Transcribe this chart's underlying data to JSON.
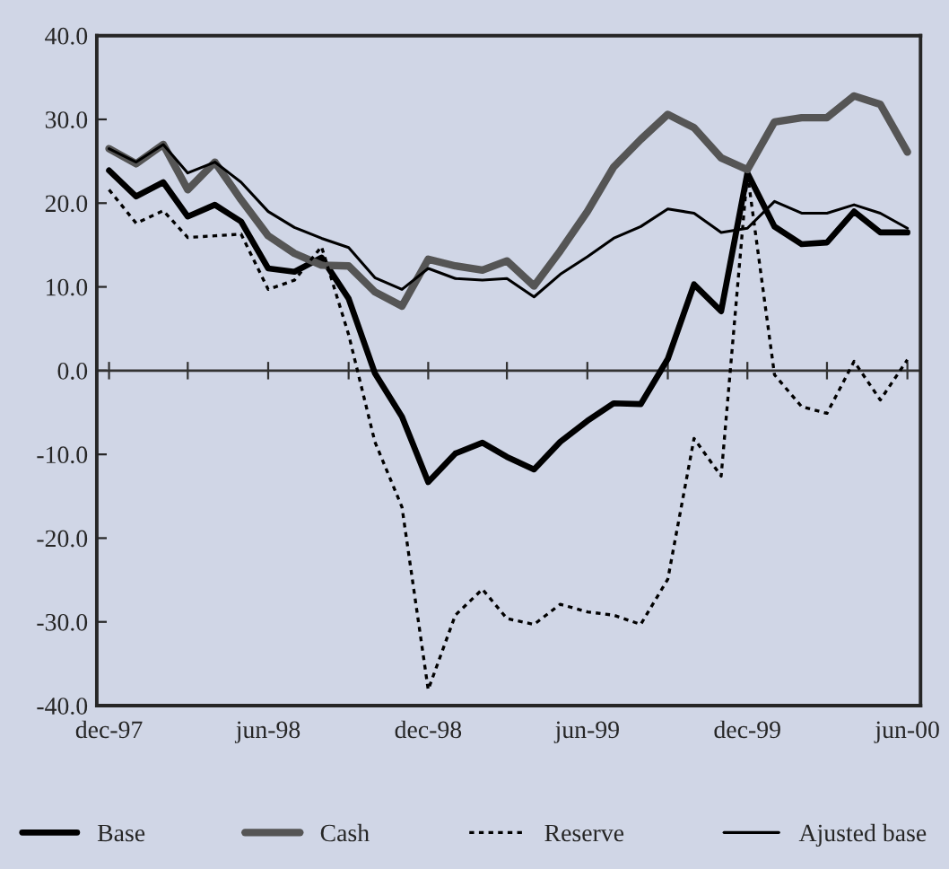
{
  "chart_data": {
    "type": "line",
    "x": [
      "1997-12",
      "1998-01",
      "1998-02",
      "1998-03",
      "1998-04",
      "1998-05",
      "1998-06",
      "1998-07",
      "1998-08",
      "1998-09",
      "1998-10",
      "1998-11",
      "1998-12",
      "1999-01",
      "1999-02",
      "1999-03",
      "1999-04",
      "1999-05",
      "1999-06",
      "1999-07",
      "1999-08",
      "1999-09",
      "1999-10",
      "1999-11",
      "1999-12",
      "2000-01",
      "2000-02",
      "2000-03",
      "2000-04",
      "2000-05",
      "2000-06"
    ],
    "series": [
      {
        "name": "Base",
        "color": "#000000",
        "line_style": "solid",
        "values": [
          23.9,
          20.8,
          22.5,
          18.4,
          19.8,
          17.8,
          12.2,
          11.8,
          13.5,
          8.6,
          -0.3,
          -5.5,
          -13.3,
          -9.9,
          -8.6,
          -10.3,
          -11.8,
          -8.5,
          -6.0,
          -3.9,
          -4.0,
          1.4,
          10.3,
          7.1,
          23.6,
          17.2,
          15.1,
          15.3,
          19.0,
          16.5,
          16.5
        ]
      },
      {
        "name": "Cash",
        "color": "#555555",
        "line_style": "solid",
        "values": [
          26.5,
          24.7,
          27.0,
          21.6,
          24.9,
          20.4,
          16.1,
          14.0,
          12.6,
          12.5,
          9.4,
          7.7,
          13.3,
          12.5,
          12.0,
          13.1,
          10.1,
          14.3,
          19.0,
          24.3,
          27.6,
          30.6,
          29.0,
          25.4,
          24.0,
          29.7,
          30.2,
          30.2,
          32.8,
          31.8,
          26.1
        ]
      },
      {
        "name": "Reserve",
        "color": "#000000",
        "line_style": "dotted",
        "values": [
          21.6,
          17.6,
          19.1,
          15.9,
          16.1,
          16.3,
          9.7,
          10.8,
          14.8,
          4.3,
          -8.5,
          -16.3,
          -38.1,
          -29.2,
          -26.1,
          -29.6,
          -30.3,
          -27.9,
          -28.8,
          -29.2,
          -30.3,
          -24.9,
          -8.1,
          -12.6,
          23.6,
          -0.5,
          -4.3,
          -5.1,
          1.1,
          -3.5,
          1.3
        ]
      },
      {
        "name": "Ajusted base",
        "color": "#000000",
        "line_style": "solid",
        "values": [
          26.5,
          24.9,
          27.0,
          23.6,
          24.9,
          22.5,
          19.0,
          17.1,
          15.8,
          14.7,
          11.1,
          9.7,
          12.2,
          11.0,
          10.8,
          11.0,
          8.8,
          11.5,
          13.6,
          15.8,
          17.2,
          19.3,
          18.8,
          16.5,
          17.0,
          20.2,
          18.8,
          18.8,
          19.8,
          18.8,
          17.0
        ]
      }
    ],
    "xlim": [
      "1997-11-17",
      "2000-06-16"
    ],
    "xticks": [
      {
        "value": "1997-12",
        "label": "dec-97"
      },
      {
        "value": "1998-03",
        "label": null
      },
      {
        "value": "1998-06",
        "label": "jun-98"
      },
      {
        "value": "1998-09",
        "label": null
      },
      {
        "value": "1998-12",
        "label": "dec-98"
      },
      {
        "value": "1999-03",
        "label": null
      },
      {
        "value": "1999-06",
        "label": "jun-99"
      },
      {
        "value": "1999-09",
        "label": null
      },
      {
        "value": "1999-12",
        "label": "dec-99"
      },
      {
        "value": "2000-03",
        "label": null
      },
      {
        "value": "2000-06",
        "label": "jun-00"
      }
    ],
    "ylim": [
      -40,
      40
    ],
    "yticks": [
      {
        "value": -40,
        "label": "-40.0"
      },
      {
        "value": -30,
        "label": "-30.0"
      },
      {
        "value": -20,
        "label": "-20.0"
      },
      {
        "value": -10,
        "label": "-10.0"
      },
      {
        "value": 0,
        "label": "0.0"
      },
      {
        "value": 10,
        "label": "10.0"
      },
      {
        "value": 20,
        "label": "20.0"
      },
      {
        "value": 30,
        "label": "30.0"
      },
      {
        "value": 40,
        "label": "40.0"
      }
    ],
    "ref_lines": [
      {
        "axis": "y",
        "value": 0,
        "color": "#333333"
      }
    ],
    "grid": false,
    "legend": "bottom",
    "marker": "none"
  }
}
